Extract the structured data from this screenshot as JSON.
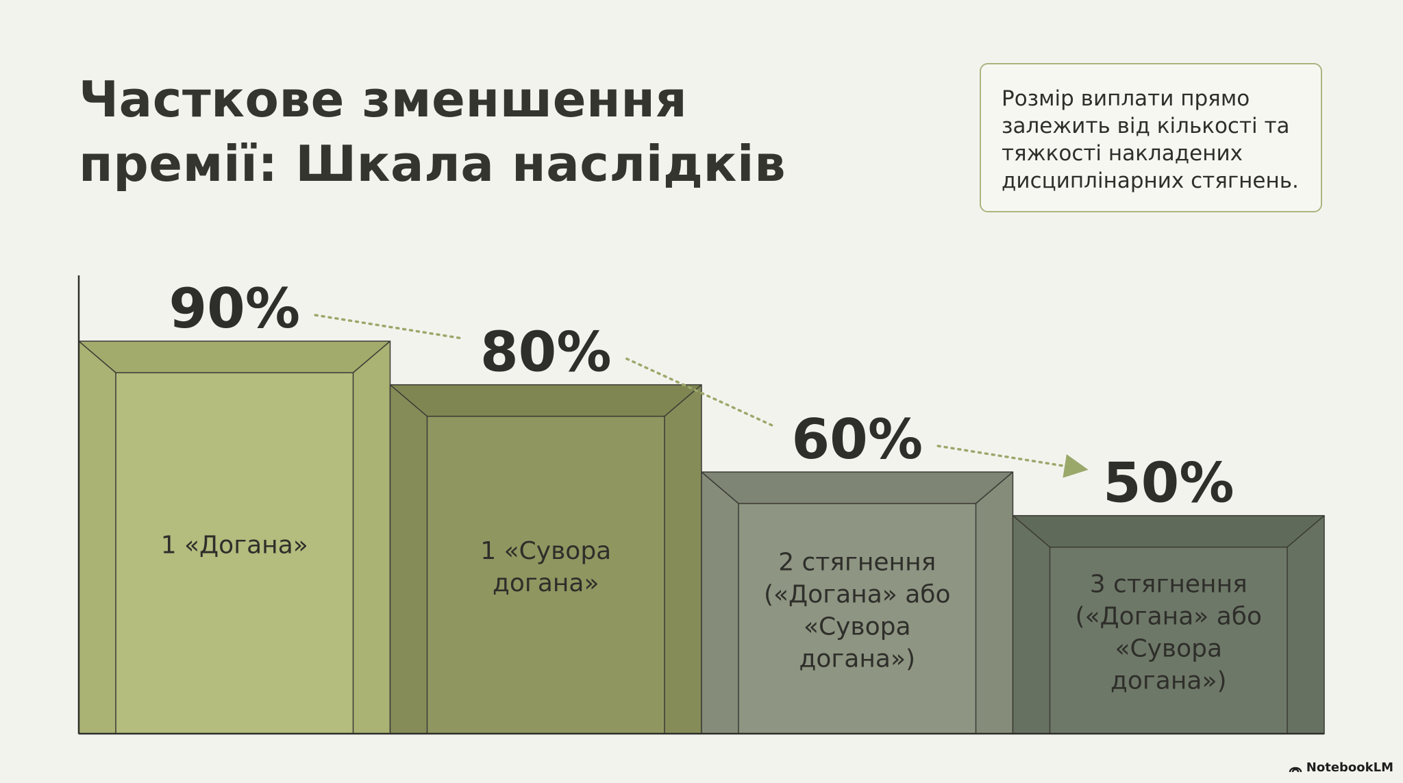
{
  "slide": {
    "title_lines": [
      "Часткове зменшення",
      "премії: Шкала наслідків"
    ],
    "note_lines": [
      "Розмір виплати прямо",
      "залежить від кількості та",
      "тяжкості накладених",
      "дисциплінарних стягнень."
    ],
    "brand": "NotebookLM"
  },
  "colors": {
    "bars": [
      "#b4bc7e",
      "#8f9660",
      "#8e9582",
      "#6e7868"
    ],
    "bar_top": [
      "#a3ab6c",
      "#7f8652",
      "#7e8574",
      "#606a5b"
    ],
    "bar_side": [
      "#aab274",
      "#858c58",
      "#858c79",
      "#677161"
    ],
    "arrow": "#9aa86a",
    "text": "#2e2e2a"
  },
  "chart_data": {
    "type": "bar",
    "categories": [
      [
        "1 «Догана»"
      ],
      [
        "1 «Сувора",
        "догана»"
      ],
      [
        "2 стягнення",
        "(«Догана» або",
        "«Сувора",
        "догана»)"
      ],
      [
        "3 стягнення",
        "(«Догана» або",
        "«Сувора",
        "догана»)"
      ]
    ],
    "values": [
      90,
      80,
      60,
      50
    ],
    "value_labels": [
      "90%",
      "80%",
      "60%",
      "50%"
    ],
    "title": "",
    "xlabel": "",
    "ylabel": "",
    "ylim": [
      0,
      100
    ],
    "grid": false,
    "legend": "none"
  }
}
